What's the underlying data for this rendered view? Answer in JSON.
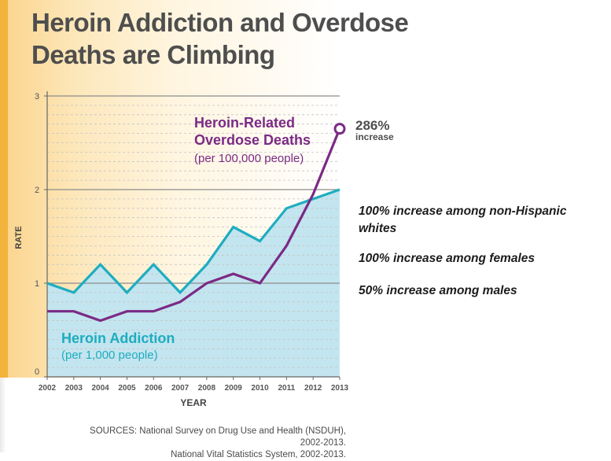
{
  "title": {
    "line1": "Heroin Addiction and Overdose",
    "line2": "Deaths are Climbing"
  },
  "chart_data": {
    "type": "line",
    "xlabel": "YEAR",
    "ylabel": "RATE",
    "ylim": [
      0,
      3
    ],
    "yticks": [
      "0",
      "1",
      "2",
      "3"
    ],
    "x": [
      "2002",
      "2003",
      "2004",
      "2005",
      "2006",
      "2007",
      "2008",
      "2009",
      "2010",
      "2011",
      "2012",
      "2013"
    ],
    "series": [
      {
        "name": "Heroin Addiction",
        "unit": "(per 1,000 people)",
        "color": "#1eadc0",
        "values": [
          1.0,
          0.9,
          1.2,
          0.9,
          1.2,
          0.9,
          1.2,
          1.6,
          1.45,
          1.8,
          1.9,
          2.0
        ]
      },
      {
        "name": "Heroin-Related Overdose Deaths",
        "name_line1": "Heroin-Related",
        "name_line2": "Overdose Deaths",
        "unit": "(per 100,000 people)",
        "color": "#7b2a85",
        "values": [
          0.7,
          0.7,
          0.6,
          0.7,
          0.7,
          0.8,
          1.0,
          1.1,
          1.0,
          1.4,
          1.95,
          2.65
        ]
      }
    ],
    "callout": {
      "value": "286%",
      "label": "increase"
    },
    "grid": true
  },
  "annotations": [
    "100% increase among non-Hispanic whites",
    "100% increase among females",
    "50% increase among males"
  ],
  "sources": {
    "line1": "SOURCES: National Survey on Drug Use and Health (NSDUH), 2002-2013.",
    "line2": "National Vital Statistics System, 2002-2013."
  },
  "colors": {
    "title": "#4e4e4e",
    "area_fill": "#c3e5ef",
    "addiction": "#1eadc0",
    "deaths": "#7b2a85",
    "accent_bar": "#f2b33c"
  }
}
